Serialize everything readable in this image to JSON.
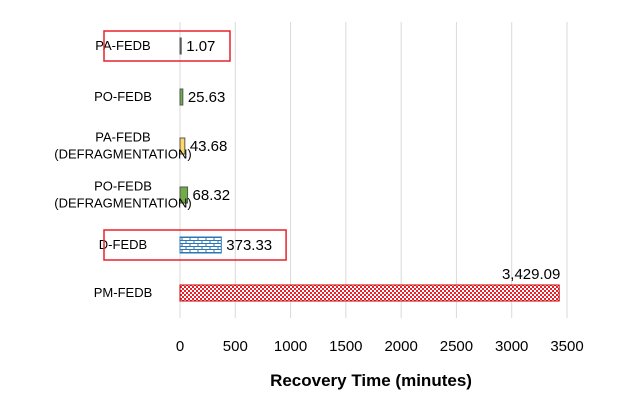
{
  "chart_data": {
    "type": "bar",
    "orientation": "horizontal",
    "title": "",
    "xlabel": "Recovery Time (minutes)",
    "ylabel": "",
    "xlim": [
      0,
      3500
    ],
    "xticks": [
      0,
      500,
      1000,
      1500,
      2000,
      2500,
      3000,
      3500
    ],
    "xtick_labels": [
      "0",
      "500",
      "1000",
      "1500",
      "2000",
      "2500",
      "3000",
      "3500"
    ],
    "grid": "vertical",
    "categories": [
      {
        "label_lines": [
          "PA-FEDB"
        ],
        "value": 1.07,
        "value_label": "1.07",
        "pattern": "solid",
        "color": "#2e75b6",
        "highlight": true
      },
      {
        "label_lines": [
          "PO-FEDB"
        ],
        "value": 25.63,
        "value_label": "25.63",
        "pattern": "solid",
        "color": "#70ad47",
        "highlight": false
      },
      {
        "label_lines": [
          "PA-FEDB",
          "(DEFRAGMENTATION)"
        ],
        "value": 43.68,
        "value_label": "43.68",
        "pattern": "solid",
        "color": "#ffd966",
        "highlight": false
      },
      {
        "label_lines": [
          "PO-FEDB",
          "(DEFRAGMENTATION)"
        ],
        "value": 68.32,
        "value_label": "68.32",
        "pattern": "solid",
        "color": "#70ad47",
        "highlight": false
      },
      {
        "label_lines": [
          "D-FEDB"
        ],
        "value": 373.33,
        "value_label": "373.33",
        "pattern": "brick",
        "color": "#2e75b6",
        "highlight": true
      },
      {
        "label_lines": [
          "PM-FEDB"
        ],
        "value": 3429.09,
        "value_label": "3,429.09",
        "pattern": "checker",
        "color": "#e8202a",
        "highlight": false
      }
    ],
    "highlight_color": "#e8202a",
    "grid_color": "#d9d9d9"
  }
}
